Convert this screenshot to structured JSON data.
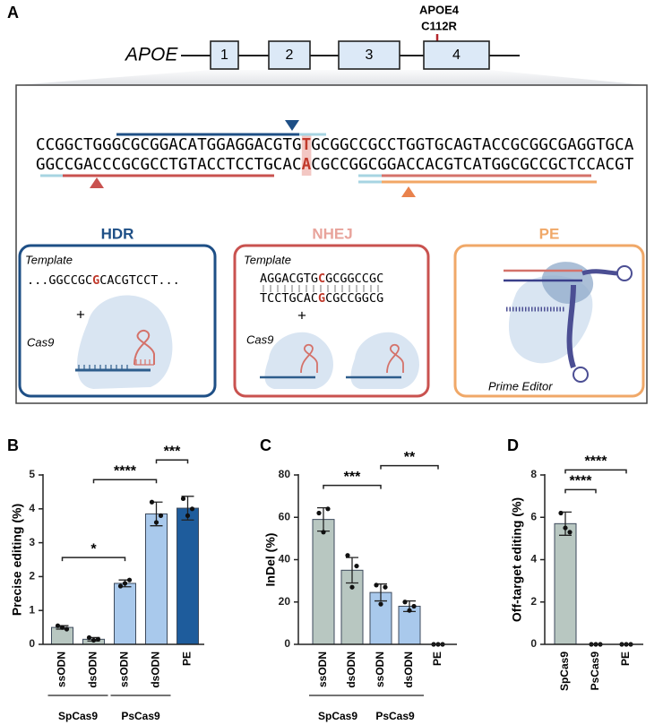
{
  "panel_a": {
    "label": "A",
    "gene": "APOE",
    "exons": [
      "1",
      "2",
      "3",
      "4"
    ],
    "variant": "APOE4",
    "mutation": "C112R",
    "sequence_top": [
      "CCGGCTGGGCGCGGACATGGAGGACGTG",
      "T",
      "GCGGCCGCCTGGTGCAGTACCGCGGCGAGGTGCA"
    ],
    "sequence_bottom": [
      "GGCCGACCCGCGCCTGTACCTCCTGCAC",
      "A",
      "CGCCGGCGGACCACGTCATGGCGCCGCTCCACGT"
    ],
    "strategies": [
      {
        "title": "HDR",
        "template_label": "Template",
        "template": [
          "...GGCCGC",
          "G",
          "CACGTCCT..."
        ],
        "plus": "+",
        "enzyme": "Cas9"
      },
      {
        "title": "NHEJ",
        "template_label": "Template",
        "template_top": [
          "AGGACGTG",
          "C",
          "GCGGCCGC"
        ],
        "template_bottom": [
          "TCCTGCAC",
          "G",
          "CGCCGGCG"
        ],
        "plus": "+",
        "enzyme": "Cas9"
      },
      {
        "title": "PE",
        "enzyme": "Prime Editor"
      }
    ]
  },
  "chart_data": [
    {
      "type": "bar",
      "label": "B",
      "ylabel": "Precise editing (%)",
      "categories": [
        "ssODN",
        "dsODN",
        "ssODN",
        "dsODN",
        "PE"
      ],
      "values": [
        0.5,
        0.15,
        1.8,
        3.85,
        4.02
      ],
      "errors": [
        0.05,
        0.05,
        0.1,
        0.35,
        0.35
      ],
      "points": [
        [
          0.55,
          0.5,
          0.45
        ],
        [
          0.2,
          0.12,
          0.15
        ],
        [
          1.72,
          1.8,
          1.9
        ],
        [
          4.2,
          3.6,
          3.8
        ],
        [
          4.3,
          3.8,
          4.0
        ]
      ],
      "colors": [
        "#b8c7c1",
        "#b8c7c1",
        "#a9c9ec",
        "#a9c9ec",
        "#1e5c9c"
      ],
      "ylim": [
        0,
        5
      ],
      "yticks": [
        0,
        1,
        2,
        3,
        4,
        5
      ],
      "groups": [
        {
          "name": "SpCas9",
          "bars": [
            0,
            1
          ]
        },
        {
          "name": "PsCas9",
          "bars": [
            2,
            3
          ]
        }
      ],
      "significance": [
        {
          "label": "*",
          "bars": [
            0,
            2
          ]
        },
        {
          "label": "****",
          "bars": [
            1,
            3
          ]
        },
        {
          "label": "***",
          "bars": [
            3,
            4
          ]
        }
      ]
    },
    {
      "type": "bar",
      "label": "C",
      "ylabel": "InDel (%)",
      "categories": [
        "ssODN",
        "dsODN",
        "ssODN",
        "dsODN",
        "PE"
      ],
      "values": [
        59,
        35,
        24.5,
        18,
        0
      ],
      "errors": [
        5.5,
        6,
        4,
        2.5,
        0
      ],
      "points": [
        [
          62,
          53,
          64
        ],
        [
          42,
          27,
          37
        ],
        [
          28,
          19,
          27
        ],
        [
          20,
          16,
          18
        ],
        [
          0,
          0,
          0
        ]
      ],
      "colors": [
        "#b8c7c1",
        "#b8c7c1",
        "#a9c9ec",
        "#a9c9ec",
        "#1e5c9c"
      ],
      "ylim": [
        0,
        80
      ],
      "yticks": [
        0,
        20,
        40,
        60,
        80
      ],
      "groups": [
        {
          "name": "SpCas9",
          "bars": [
            0,
            1
          ]
        },
        {
          "name": "PsCas9",
          "bars": [
            2,
            3
          ]
        }
      ],
      "significance": [
        {
          "label": "***",
          "bars": [
            0,
            2
          ]
        },
        {
          "label": "**",
          "bars": [
            2,
            4
          ]
        }
      ]
    },
    {
      "type": "bar",
      "label": "D",
      "ylabel": "Off-target editing (%)",
      "categories": [
        "SpCas9",
        "PsCas9",
        "PE"
      ],
      "values": [
        5.7,
        0,
        0
      ],
      "errors": [
        0.55,
        0,
        0
      ],
      "points": [
        [
          6.2,
          5.5,
          5.3
        ],
        [
          0,
          0,
          0
        ],
        [
          0,
          0,
          0
        ]
      ],
      "colors": [
        "#b8c7c1",
        "#a9c9ec",
        "#1e5c9c"
      ],
      "ylim": [
        0,
        8
      ],
      "yticks": [
        0,
        2,
        4,
        6,
        8
      ],
      "groups": [],
      "significance": [
        {
          "label": "****",
          "bars": [
            0,
            1
          ]
        },
        {
          "label": "****",
          "bars": [
            0,
            2
          ]
        }
      ]
    }
  ]
}
